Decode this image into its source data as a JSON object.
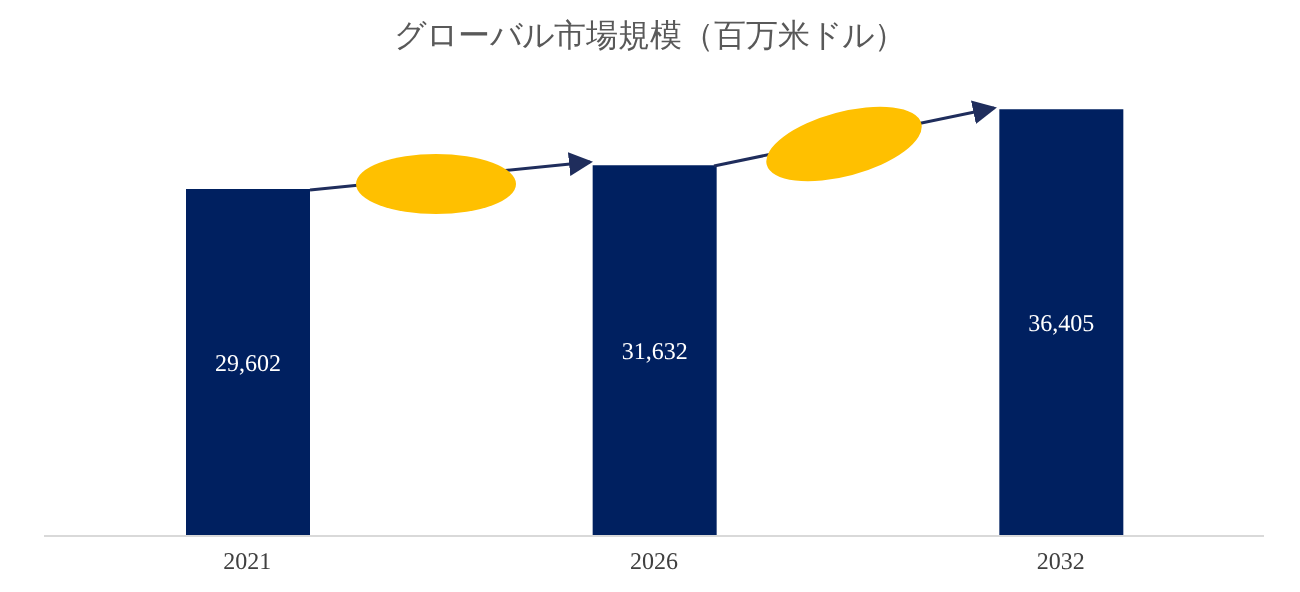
{
  "chart_data": {
    "type": "bar",
    "title": "グローバル市場規模（百万米ドル）",
    "categories": [
      "2021",
      "2026",
      "2032"
    ],
    "values": [
      29602,
      31632,
      36405
    ],
    "color": "#002060",
    "value_labels": [
      "29,602",
      "31,632",
      "36,405"
    ],
    "tick_labels": "x"
  }
}
